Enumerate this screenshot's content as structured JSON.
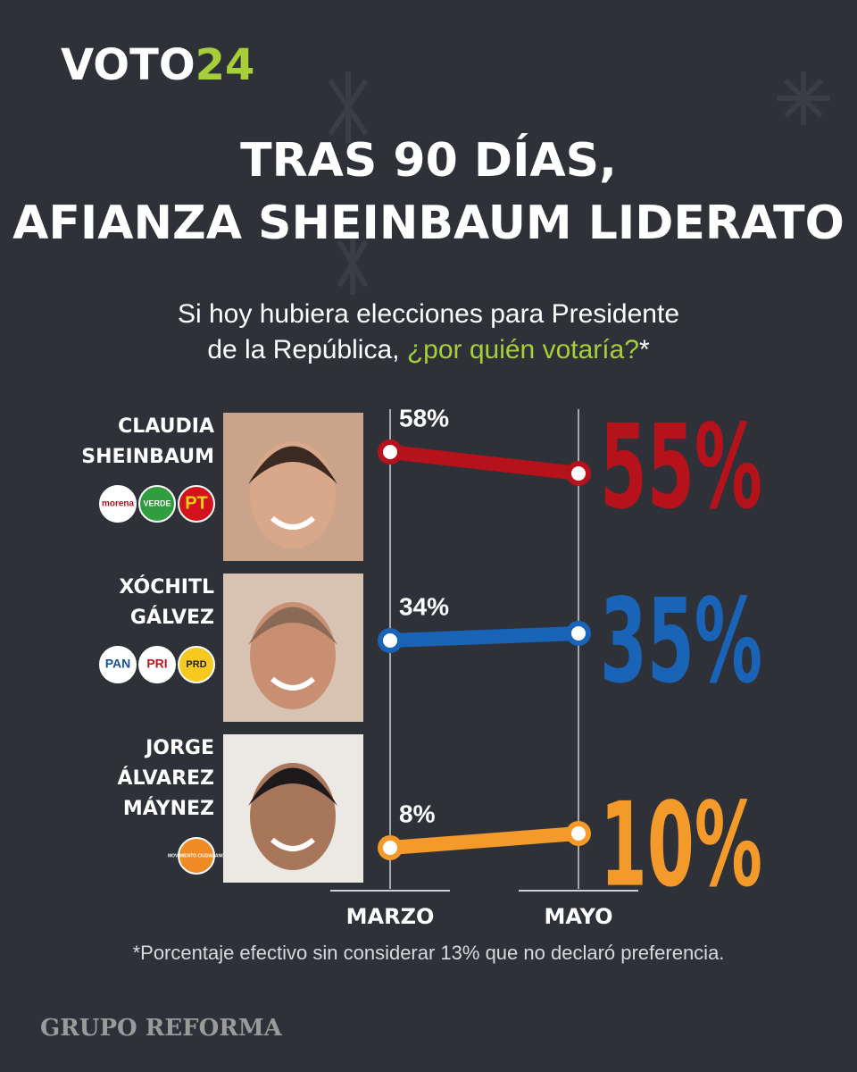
{
  "brand": {
    "name": "VOTO",
    "number": "24"
  },
  "publisher": "GRUPO REFORMA",
  "chart_data": {
    "type": "slope",
    "title": [
      "TRAS 90 DÍAS,",
      "AFIANZA SHEINBAUM LIDERATO"
    ],
    "subtitle": [
      "Si hoy hubiera elecciones para Presidente",
      "de la República, ",
      "¿por quién votaría?",
      "*"
    ],
    "categories": [
      "MARZO",
      "MAYO"
    ],
    "series": [
      {
        "name": [
          "CLAUDIA",
          "SHEINBAUM"
        ],
        "parties": [
          "morena",
          "VERDE",
          "PT"
        ],
        "color": "#b5121b",
        "values": [
          58,
          55
        ],
        "value_labels": [
          "58%",
          "55%"
        ]
      },
      {
        "name": [
          "XÓCHITL",
          "GÁLVEZ"
        ],
        "parties": [
          "PAN",
          "PRI",
          "PRD"
        ],
        "color": "#1a64b8",
        "values": [
          34,
          35
        ],
        "value_labels": [
          "34%",
          "35%"
        ]
      },
      {
        "name": [
          "JORGE",
          "ÁLVAREZ",
          "MÁYNEZ"
        ],
        "parties": [
          "MOVIMIENTO CIUDADANO"
        ],
        "color": "#f39a2b",
        "values": [
          8,
          10
        ],
        "value_labels": [
          "8%",
          "10%"
        ]
      }
    ],
    "footnote": "*Porcentaje efectivo sin considerar 13% que no declaró preferencia."
  }
}
